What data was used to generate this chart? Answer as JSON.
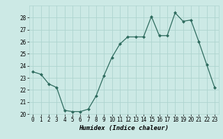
{
  "x": [
    0,
    1,
    2,
    3,
    4,
    5,
    6,
    7,
    8,
    9,
    10,
    11,
    12,
    13,
    14,
    15,
    16,
    17,
    18,
    19,
    20,
    21,
    22,
    23
  ],
  "y": [
    23.5,
    23.3,
    22.5,
    22.2,
    20.3,
    20.2,
    20.2,
    20.4,
    21.5,
    23.2,
    24.7,
    25.8,
    26.4,
    26.4,
    26.4,
    28.1,
    26.5,
    26.5,
    28.4,
    27.7,
    27.8,
    26.0,
    24.1,
    22.2
  ],
  "line_color": "#2e6b5e",
  "marker": "D",
  "marker_size": 2,
  "bg_color": "#cce9e5",
  "grid_color": "#aed4cf",
  "xlabel": "Humidex (Indice chaleur)",
  "xlim": [
    -0.5,
    23.5
  ],
  "ylim": [
    20,
    29
  ],
  "yticks": [
    20,
    21,
    22,
    23,
    24,
    25,
    26,
    27,
    28
  ],
  "xticks": [
    0,
    1,
    2,
    3,
    4,
    5,
    6,
    7,
    8,
    9,
    10,
    11,
    12,
    13,
    14,
    15,
    16,
    17,
    18,
    19,
    20,
    21,
    22,
    23
  ],
  "tick_fontsize": 5.5,
  "xlabel_fontsize": 6.5
}
